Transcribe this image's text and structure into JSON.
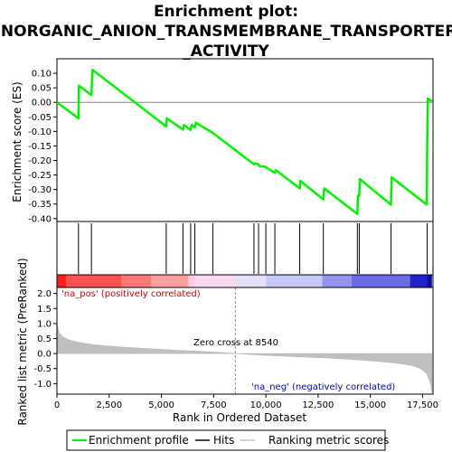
{
  "chart_data": {
    "type": "line",
    "title": "Enrichment plot: INORGANIC_ANION_TRANSMEMBRANE_TRANSPORTER_ACTIVITY",
    "title_lines": [
      "Enrichment plot:",
      "INORGANIC_ANION_TRANSMEMBRANE_TRANSPORTER",
      "_ACTIVITY"
    ],
    "es_panel": {
      "ylabel": "Enrichment score (ES)",
      "ylim": [
        -0.41,
        0.15
      ],
      "yticks": [
        "0.10",
        "0.05",
        "0.00",
        "-0.05",
        "-0.10",
        "-0.15",
        "-0.20",
        "-0.25",
        "-0.30",
        "-0.35",
        "-0.40"
      ],
      "ytick_values": [
        0.1,
        0.05,
        0.0,
        -0.05,
        -0.1,
        -0.15,
        -0.2,
        -0.25,
        -0.3,
        -0.35,
        -0.4
      ],
      "grid": false
    },
    "series": [
      {
        "name": "Enrichment profile",
        "color": "#00ee00",
        "x": [
          0,
          1030,
          1050,
          1650,
          1700,
          5230,
          5260,
          6030,
          6080,
          6400,
          6450,
          6600,
          6650,
          7460,
          7490,
          9430,
          9460,
          9650,
          9700,
          10000,
          10040,
          10430,
          10470,
          11620,
          11650,
          12750,
          12790,
          14380,
          14410,
          14470,
          14500,
          15990,
          16020,
          17700,
          17720,
          17750,
          17950
        ],
        "y": [
          0.0,
          -0.055,
          0.058,
          0.025,
          0.112,
          -0.083,
          -0.055,
          -0.094,
          -0.078,
          -0.095,
          -0.077,
          -0.087,
          -0.07,
          -0.105,
          -0.107,
          -0.213,
          -0.21,
          -0.213,
          -0.22,
          -0.222,
          -0.225,
          -0.243,
          -0.233,
          -0.296,
          -0.27,
          -0.334,
          -0.296,
          -0.384,
          -0.321,
          -0.322,
          -0.264,
          -0.352,
          -0.258,
          -0.352,
          -0.168,
          0.013,
          0.003
        ]
      }
    ],
    "hits": [
      1030,
      1650,
      5230,
      6030,
      6400,
      6600,
      7460,
      9430,
      9650,
      10000,
      10430,
      11620,
      12750,
      14380,
      14470,
      15990,
      17720
    ],
    "rank_panel": {
      "ylabel": "Ranked list metric (PreRanked)",
      "ylim": [
        -1.35,
        2.2
      ],
      "yticks": [
        "2.0",
        "1.5",
        "1.0",
        "0.5",
        "0.0",
        "-0.5",
        "-1.0"
      ],
      "ytick_values": [
        2.0,
        1.5,
        1.0,
        0.5,
        0.0,
        -0.5,
        -1.0
      ],
      "metric_x": [
        0,
        100,
        300,
        600,
        1000,
        1500,
        2000,
        3000,
        4000,
        5000,
        6000,
        7000,
        8000,
        8540,
        9000,
        10000,
        11000,
        12000,
        13000,
        14000,
        15000,
        16000,
        16500,
        17000,
        17300,
        17500,
        17700,
        17800,
        17900,
        17950
      ],
      "metric_y": [
        1.0,
        0.7,
        0.55,
        0.45,
        0.38,
        0.32,
        0.28,
        0.22,
        0.18,
        0.14,
        0.1,
        0.07,
        0.03,
        0.0,
        -0.02,
        -0.06,
        -0.09,
        -0.12,
        -0.15,
        -0.19,
        -0.24,
        -0.3,
        -0.34,
        -0.4,
        -0.47,
        -0.55,
        -0.68,
        -0.85,
        -1.05,
        -1.3
      ],
      "zero_cross_label": "Zero cross at 8540",
      "zero_cross": 8540,
      "pos_label": "'na_pos' (positively correlated)",
      "neg_label": "'na_neg' (negatively correlated)"
    },
    "xlabel": "Rank in Ordered Dataset",
    "xlim": [
      0,
      18000
    ],
    "xticks": [
      "0",
      "2,500",
      "5,000",
      "7,500",
      "10,000",
      "12,500",
      "15,000",
      "17,500"
    ],
    "xtick_values": [
      0,
      2500,
      5000,
      7500,
      10000,
      12500,
      15000,
      17500
    ],
    "colorbar": {
      "stops": [
        0,
        450,
        3100,
        4500,
        6300,
        6600,
        8540,
        10000,
        12700,
        14100,
        16900,
        17700,
        17950
      ],
      "colors": [
        "#ff2020",
        "#ff5050",
        "#ff7878",
        "#ffa0a0",
        "#ffc8e4",
        "#fbd8f0",
        "#e4e0fc",
        "#c8c8f8",
        "#9494f0",
        "#6c6ce8",
        "#2222c8",
        "#0c0ca8"
      ]
    },
    "legend": [
      {
        "label": "Enrichment profile",
        "color": "#00ee00"
      },
      {
        "label": "Hits",
        "color": "#000000"
      },
      {
        "label": "Ranking metric scores",
        "color": "#c0c0c0"
      }
    ]
  }
}
